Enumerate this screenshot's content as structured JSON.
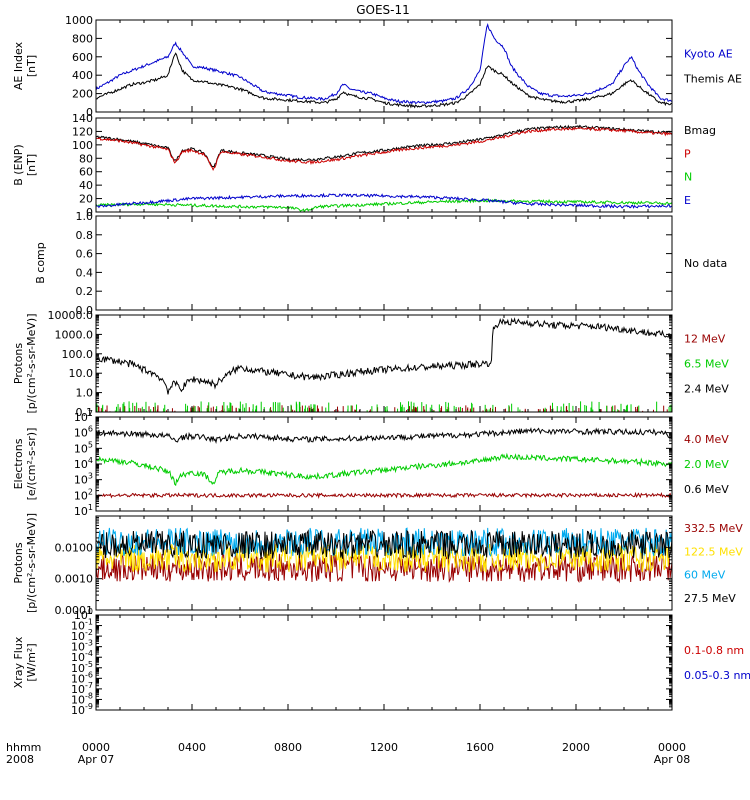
{
  "title": "GOES-11",
  "x_axis": {
    "ticks": [
      {
        "label": "0000",
        "sub": "Apr 07",
        "hour": 0
      },
      {
        "label": "0400",
        "sub": "",
        "hour": 4
      },
      {
        "label": "0800",
        "sub": "",
        "hour": 8
      },
      {
        "label": "1200",
        "sub": "",
        "hour": 12
      },
      {
        "label": "1600",
        "sub": "",
        "hour": 16
      },
      {
        "label": "2000",
        "sub": "",
        "hour": 20
      },
      {
        "label": "0000",
        "sub": "Apr 08",
        "hour": 24
      }
    ],
    "left_label": "hhmm",
    "left_sublabel": "2008",
    "range_hours": [
      0,
      24
    ]
  },
  "chart_data": [
    {
      "id": "ae",
      "type": "line",
      "ylabel": [
        "AE Index",
        "[nT]"
      ],
      "scale": "linear",
      "ylim": [
        0,
        1000
      ],
      "ticks": [
        {
          "v": 0,
          "label": "0"
        },
        {
          "v": 200,
          "label": "200"
        },
        {
          "v": 400,
          "label": "400"
        },
        {
          "v": 600,
          "label": "600"
        },
        {
          "v": 800,
          "label": "800"
        },
        {
          "v": 1000,
          "label": "1000"
        }
      ],
      "series": [
        {
          "name": "Kyoto AE",
          "color": "#0000cc",
          "x": [
            0,
            0.5,
            1,
            1.5,
            2,
            2.5,
            3,
            3.3,
            3.6,
            4,
            4.5,
            5,
            5.5,
            6,
            6.5,
            7,
            7.5,
            8,
            8.5,
            9,
            9.5,
            10,
            10.3,
            10.6,
            11,
            11.5,
            12,
            12.5,
            13,
            13.5,
            14,
            14.5,
            15,
            15.5,
            16,
            16.3,
            16.6,
            17,
            17.3,
            17.6,
            18,
            18.5,
            19,
            19.5,
            20,
            20.5,
            21,
            21.5,
            22,
            22.3,
            22.6,
            23,
            23.5,
            24
          ],
          "y": [
            250,
            320,
            400,
            450,
            500,
            550,
            600,
            750,
            650,
            500,
            480,
            450,
            420,
            380,
            300,
            220,
            200,
            180,
            160,
            150,
            140,
            200,
            300,
            250,
            220,
            200,
            150,
            120,
            110,
            100,
            110,
            120,
            150,
            250,
            450,
            950,
            800,
            700,
            500,
            400,
            280,
            200,
            180,
            170,
            180,
            200,
            250,
            300,
            500,
            600,
            450,
            300,
            150,
            120
          ]
        },
        {
          "name": "Themis AE",
          "color": "#000000",
          "x": [
            0,
            0.5,
            1,
            1.5,
            2,
            2.5,
            3,
            3.3,
            3.6,
            4,
            4.5,
            5,
            5.5,
            6,
            6.5,
            7,
            7.5,
            8,
            8.5,
            9,
            9.5,
            10,
            10.3,
            10.6,
            11,
            11.5,
            12,
            12.5,
            13,
            13.5,
            14,
            14.5,
            15,
            15.5,
            16,
            16.3,
            16.6,
            17,
            17.3,
            17.6,
            18,
            18.5,
            19,
            19.5,
            20,
            20.5,
            21,
            21.5,
            22,
            22.3,
            22.6,
            23,
            23.5,
            24
          ],
          "y": [
            150,
            200,
            250,
            300,
            320,
            350,
            400,
            650,
            450,
            350,
            330,
            300,
            280,
            250,
            200,
            150,
            140,
            130,
            120,
            110,
            100,
            140,
            220,
            180,
            160,
            140,
            100,
            80,
            70,
            60,
            70,
            80,
            100,
            180,
            300,
            500,
            450,
            400,
            320,
            260,
            180,
            140,
            120,
            110,
            120,
            140,
            170,
            200,
            300,
            350,
            280,
            200,
            100,
            80
          ]
        }
      ]
    },
    {
      "id": "bfield",
      "type": "line",
      "ylabel": [
        "B (ENP)",
        "[nT]"
      ],
      "scale": "linear",
      "ylim": [
        0,
        140
      ],
      "ticks": [
        {
          "v": 0,
          "label": "0"
        },
        {
          "v": 20,
          "label": "20"
        },
        {
          "v": 40,
          "label": "40"
        },
        {
          "v": 60,
          "label": "60"
        },
        {
          "v": 80,
          "label": "80"
        },
        {
          "v": 100,
          "label": "100"
        },
        {
          "v": 120,
          "label": "120"
        },
        {
          "v": 140,
          "label": "140"
        }
      ],
      "series": [
        {
          "name": "Bmag",
          "color": "#000000",
          "x": [
            0,
            1,
            2,
            3,
            3.3,
            3.6,
            4,
            4.5,
            4.9,
            5.2,
            6,
            7,
            8,
            9,
            10,
            11,
            12,
            13,
            14,
            15,
            16,
            17,
            17.5,
            18,
            19,
            20,
            21,
            22,
            23,
            24
          ],
          "y": [
            112,
            108,
            102,
            95,
            75,
            92,
            94,
            88,
            65,
            92,
            88,
            84,
            78,
            78,
            82,
            88,
            92,
            97,
            100,
            103,
            108,
            115,
            120,
            123,
            126,
            127,
            125,
            123,
            120,
            118
          ]
        },
        {
          "name": "P",
          "color": "#cc0000",
          "x": [
            0,
            1,
            2,
            3,
            3.3,
            3.6,
            4,
            4.5,
            4.9,
            5.2,
            6,
            7,
            8,
            9,
            10,
            11,
            12,
            13,
            14,
            15,
            16,
            17,
            17.5,
            18,
            19,
            20,
            21,
            22,
            23,
            24
          ],
          "y": [
            110,
            106,
            100,
            93,
            73,
            90,
            92,
            86,
            63,
            90,
            86,
            82,
            76,
            74,
            78,
            84,
            89,
            94,
            97,
            100,
            105,
            112,
            117,
            120,
            123,
            124,
            123,
            121,
            118,
            116
          ]
        },
        {
          "name": "N",
          "color": "#00cc00",
          "x": [
            0,
            2,
            4,
            6,
            8,
            8.7,
            9.3,
            10,
            12,
            14,
            16,
            18,
            20,
            22,
            24
          ],
          "y": [
            10,
            12,
            10,
            8,
            7,
            2,
            8,
            9,
            12,
            15,
            17,
            16,
            15,
            14,
            13
          ]
        },
        {
          "name": "E",
          "color": "#0000cc",
          "x": [
            0,
            2,
            4,
            6,
            8,
            10,
            12,
            14,
            16,
            18,
            20,
            22,
            24
          ],
          "y": [
            8,
            14,
            20,
            22,
            24,
            25,
            24,
            22,
            18,
            12,
            10,
            8,
            9
          ]
        }
      ]
    },
    {
      "id": "bcomp",
      "type": "line",
      "ylabel": [
        "B comp"
      ],
      "scale": "linear",
      "ylim": [
        0,
        1
      ],
      "ticks": [
        {
          "v": 0,
          "label": "0.0"
        },
        {
          "v": 0.2,
          "label": "0.2"
        },
        {
          "v": 0.4,
          "label": "0.4"
        },
        {
          "v": 0.6,
          "label": "0.6"
        },
        {
          "v": 0.8,
          "label": "0.8"
        },
        {
          "v": 1.0,
          "label": "1.0"
        }
      ],
      "series": [],
      "note": "No data"
    },
    {
      "id": "protons_low",
      "type": "line",
      "ylabel": [
        "Protons",
        "[p/(cm²-s-sr-MeV)]"
      ],
      "scale": "log",
      "ylim": [
        0.1,
        10000
      ],
      "ticks": [
        {
          "v": 0.1,
          "label": "0.1"
        },
        {
          "v": 1,
          "label": "1.0"
        },
        {
          "v": 10,
          "label": "10.0"
        },
        {
          "v": 100,
          "label": "100.0"
        },
        {
          "v": 1000,
          "label": "1000.0"
        },
        {
          "v": 10000,
          "label": "10000.0"
        }
      ],
      "series": [
        {
          "name": "12 MeV",
          "color": "#990000",
          "x": [],
          "y": []
        },
        {
          "name": "6.5 MeV",
          "color": "#00cc00",
          "x": [],
          "y": []
        },
        {
          "name": "2.4 MeV",
          "color": "#000000",
          "x": [
            0,
            1,
            2,
            2.8,
            3,
            3.3,
            3.6,
            4,
            4.5,
            5,
            5.5,
            6,
            6.5,
            7,
            8,
            9,
            10,
            11,
            12,
            13,
            14,
            15,
            16,
            16.5,
            16.6,
            17,
            18,
            19,
            20,
            21,
            22,
            23,
            24
          ],
          "y": [
            60,
            40,
            15,
            4,
            1.2,
            3,
            1.5,
            5,
            4,
            2.5,
            8,
            20,
            15,
            12,
            8,
            6,
            8,
            12,
            15,
            18,
            22,
            25,
            30,
            35,
            3000,
            4500,
            4000,
            3000,
            2800,
            2500,
            1800,
            1200,
            800
          ]
        }
      ]
    },
    {
      "id": "electrons",
      "type": "line",
      "ylabel": [
        "Electrons",
        "[e/(cm²-s-sr)]"
      ],
      "scale": "log",
      "ylim": [
        10,
        10000000
      ],
      "ticks": [
        {
          "v": 10,
          "exp": "1"
        },
        {
          "v": 100,
          "exp": "2"
        },
        {
          "v": 1000,
          "exp": "3"
        },
        {
          "v": 10000,
          "exp": "4"
        },
        {
          "v": 100000,
          "exp": "5"
        },
        {
          "v": 1000000,
          "exp": "6"
        },
        {
          "v": 10000000,
          "exp": "7"
        }
      ],
      "tick_base": "10",
      "series": [
        {
          "name": "4.0 MeV",
          "color": "#990000",
          "x": [
            0,
            24
          ],
          "y": [
            100,
            100
          ]
        },
        {
          "name": "2.0 MeV",
          "color": "#00cc00",
          "x": [
            0,
            1,
            2,
            3,
            3.3,
            3.6,
            4,
            4.5,
            4.9,
            5.2,
            6,
            7,
            8,
            9,
            10,
            12,
            14,
            16,
            17,
            18,
            20,
            22,
            24
          ],
          "y": [
            20000,
            15000,
            8000,
            3000,
            500,
            2000,
            3000,
            2000,
            400,
            3000,
            4000,
            3000,
            2000,
            1500,
            2000,
            4000,
            8000,
            15000,
            30000,
            25000,
            20000,
            15000,
            10000
          ]
        },
        {
          "name": "0.6 MeV",
          "color": "#000000",
          "x": [
            0,
            1,
            2,
            3,
            3.3,
            3.6,
            4,
            4.5,
            5,
            6,
            7,
            8,
            9,
            10,
            12,
            14,
            16,
            17,
            18,
            20,
            22,
            23.5,
            24
          ],
          "y": [
            1000000,
            900000,
            800000,
            600000,
            300000,
            500000,
            600000,
            500000,
            350000,
            600000,
            550000,
            400000,
            380000,
            400000,
            500000,
            600000,
            800000,
            1000000,
            1300000,
            1200000,
            1100000,
            1050000,
            600000
          ]
        }
      ]
    },
    {
      "id": "protons_high",
      "type": "line",
      "ylabel": [
        "Protons",
        "[p/(cm²-s-sr-MeV)]"
      ],
      "scale": "log",
      "ylim": [
        0.0001,
        0.1
      ],
      "ticks": [
        {
          "v": 0.0001,
          "label": "0.0001"
        },
        {
          "v": 0.001,
          "label": "0.0010"
        },
        {
          "v": 0.01,
          "label": "0.0100"
        }
      ],
      "series": [
        {
          "name": "332.5 MeV",
          "color": "#990000",
          "x": [
            0,
            24
          ],
          "y": [
            0.0022,
            0.0022
          ]
        },
        {
          "name": "122.5 MeV",
          "color": "#ffe000",
          "x": [
            0,
            24
          ],
          "y": [
            0.0045,
            0.0045
          ]
        },
        {
          "name": "60 MeV",
          "color": "#00aaee",
          "x": [
            0,
            24
          ],
          "y": [
            0.015,
            0.015
          ]
        },
        {
          "name": "27.5 MeV",
          "color": "#000000",
          "x": [
            0,
            24
          ],
          "y": [
            0.012,
            0.012
          ]
        }
      ]
    },
    {
      "id": "xray",
      "type": "line",
      "ylabel": [
        "Xray Flux",
        "[W/m²]"
      ],
      "scale": "log",
      "ylim": [
        1e-09,
        1
      ],
      "ticks": [
        {
          "v": 1e-09,
          "exp": "-9"
        },
        {
          "v": 1e-08,
          "exp": "-8"
        },
        {
          "v": 1e-07,
          "exp": "-7"
        },
        {
          "v": 1e-06,
          "exp": "-6"
        },
        {
          "v": 1e-05,
          "exp": "-5"
        },
        {
          "v": 0.0001,
          "exp": "-4"
        },
        {
          "v": 0.001,
          "exp": "-3"
        },
        {
          "v": 0.01,
          "exp": "-2"
        },
        {
          "v": 0.1,
          "exp": "-1"
        },
        {
          "v": 1,
          "exp": "0"
        }
      ],
      "tick_base": "10",
      "series": [
        {
          "name": "0.1-0.8 nm",
          "color": "#cc0000",
          "x": [],
          "y": []
        },
        {
          "name": "0.05-0.3 nm",
          "color": "#0000cc",
          "x": [],
          "y": []
        }
      ]
    }
  ]
}
